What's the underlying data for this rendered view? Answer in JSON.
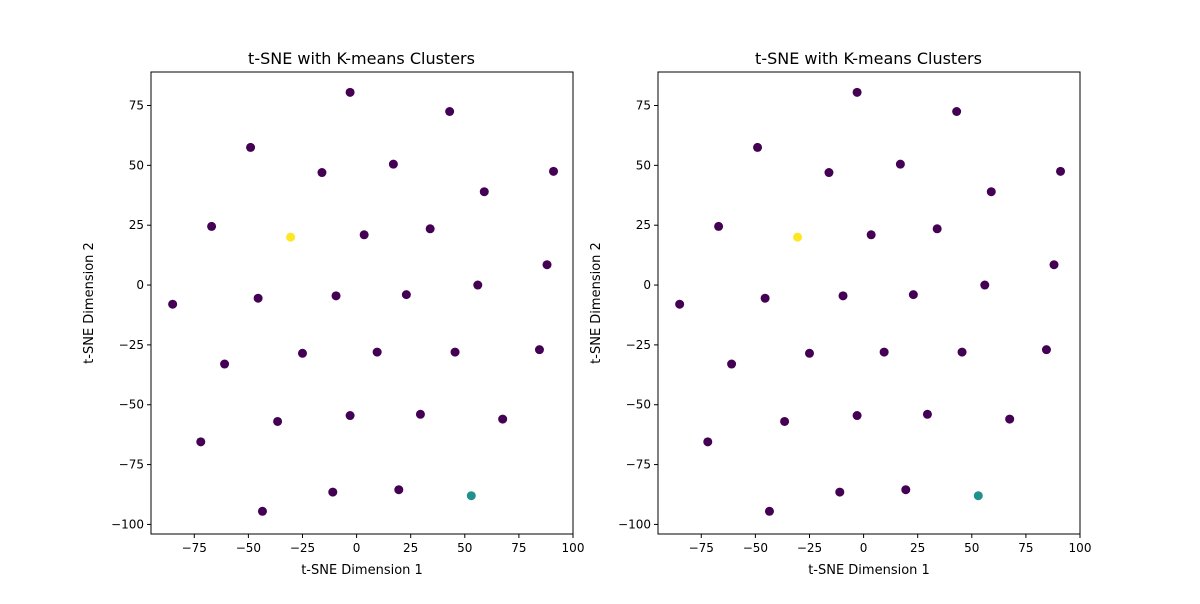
{
  "chart_data": [
    {
      "type": "scatter",
      "title": "t-SNE with K-means Clusters",
      "xlabel": "t-SNE Dimension 1",
      "ylabel": "t-SNE Dimension 2",
      "xlim": [
        -95,
        100
      ],
      "ylim": [
        -104,
        89
      ],
      "xticks": [
        -75,
        -50,
        -25,
        0,
        25,
        50,
        75,
        100
      ],
      "yticks": [
        75,
        50,
        25,
        0,
        -25,
        -50,
        -75,
        -100
      ],
      "grid": false,
      "legend": "none",
      "cluster_colors": [
        "#440154",
        "#21918c",
        "#fde725"
      ],
      "points": [
        {
          "x": -3,
          "y": 80.5,
          "cluster": 0
        },
        {
          "x": 43,
          "y": 72.5,
          "cluster": 0
        },
        {
          "x": -49,
          "y": 57.5,
          "cluster": 0
        },
        {
          "x": 17,
          "y": 50.5,
          "cluster": 0
        },
        {
          "x": -16,
          "y": 47,
          "cluster": 0
        },
        {
          "x": 91,
          "y": 47.5,
          "cluster": 0
        },
        {
          "x": 59,
          "y": 39,
          "cluster": 0
        },
        {
          "x": -67,
          "y": 24.5,
          "cluster": 0
        },
        {
          "x": 34,
          "y": 23.5,
          "cluster": 0
        },
        {
          "x": 3.5,
          "y": 21,
          "cluster": 0
        },
        {
          "x": -30.5,
          "y": 20,
          "cluster": 2
        },
        {
          "x": 88,
          "y": 8.5,
          "cluster": 0
        },
        {
          "x": 56,
          "y": 0,
          "cluster": 0
        },
        {
          "x": -85,
          "y": -8,
          "cluster": 0
        },
        {
          "x": -45.5,
          "y": -5.5,
          "cluster": 0
        },
        {
          "x": -9.5,
          "y": -4.5,
          "cluster": 0
        },
        {
          "x": 23,
          "y": -4,
          "cluster": 0
        },
        {
          "x": 84.5,
          "y": -27,
          "cluster": 0
        },
        {
          "x": -25,
          "y": -28.5,
          "cluster": 0
        },
        {
          "x": 9.5,
          "y": -28,
          "cluster": 0
        },
        {
          "x": 45.5,
          "y": -28,
          "cluster": 0
        },
        {
          "x": -61,
          "y": -33,
          "cluster": 0
        },
        {
          "x": 29.5,
          "y": -54,
          "cluster": 0
        },
        {
          "x": -3,
          "y": -54.5,
          "cluster": 0
        },
        {
          "x": 67.5,
          "y": -56,
          "cluster": 0
        },
        {
          "x": -36.5,
          "y": -57,
          "cluster": 0
        },
        {
          "x": -72,
          "y": -65.5,
          "cluster": 0
        },
        {
          "x": 19.5,
          "y": -85.5,
          "cluster": 0
        },
        {
          "x": -11,
          "y": -86.5,
          "cluster": 0
        },
        {
          "x": 53,
          "y": -88,
          "cluster": 1
        },
        {
          "x": -43.5,
          "y": -94.5,
          "cluster": 0
        }
      ]
    },
    {
      "type": "scatter",
      "title": "t-SNE with K-means Clusters",
      "xlabel": "t-SNE Dimension 1",
      "ylabel": "t-SNE Dimension 2",
      "xlim": [
        -95,
        100
      ],
      "ylim": [
        -104,
        89
      ],
      "xticks": [
        -75,
        -50,
        -25,
        0,
        25,
        50,
        75,
        100
      ],
      "yticks": [
        75,
        50,
        25,
        0,
        -25,
        -50,
        -75,
        -100
      ],
      "grid": false,
      "legend": "none",
      "cluster_colors": [
        "#440154",
        "#21918c",
        "#fde725"
      ],
      "points": [
        {
          "x": -3,
          "y": 80.5,
          "cluster": 0
        },
        {
          "x": 43,
          "y": 72.5,
          "cluster": 0
        },
        {
          "x": -49,
          "y": 57.5,
          "cluster": 0
        },
        {
          "x": 17,
          "y": 50.5,
          "cluster": 0
        },
        {
          "x": -16,
          "y": 47,
          "cluster": 0
        },
        {
          "x": 91,
          "y": 47.5,
          "cluster": 0
        },
        {
          "x": 59,
          "y": 39,
          "cluster": 0
        },
        {
          "x": -67,
          "y": 24.5,
          "cluster": 0
        },
        {
          "x": 34,
          "y": 23.5,
          "cluster": 0
        },
        {
          "x": 3.5,
          "y": 21,
          "cluster": 0
        },
        {
          "x": -30.5,
          "y": 20,
          "cluster": 2
        },
        {
          "x": 88,
          "y": 8.5,
          "cluster": 0
        },
        {
          "x": 56,
          "y": 0,
          "cluster": 0
        },
        {
          "x": -85,
          "y": -8,
          "cluster": 0
        },
        {
          "x": -45.5,
          "y": -5.5,
          "cluster": 0
        },
        {
          "x": -9.5,
          "y": -4.5,
          "cluster": 0
        },
        {
          "x": 23,
          "y": -4,
          "cluster": 0
        },
        {
          "x": 84.5,
          "y": -27,
          "cluster": 0
        },
        {
          "x": -25,
          "y": -28.5,
          "cluster": 0
        },
        {
          "x": 9.5,
          "y": -28,
          "cluster": 0
        },
        {
          "x": 45.5,
          "y": -28,
          "cluster": 0
        },
        {
          "x": -61,
          "y": -33,
          "cluster": 0
        },
        {
          "x": 29.5,
          "y": -54,
          "cluster": 0
        },
        {
          "x": -3,
          "y": -54.5,
          "cluster": 0
        },
        {
          "x": 67.5,
          "y": -56,
          "cluster": 0
        },
        {
          "x": -36.5,
          "y": -57,
          "cluster": 0
        },
        {
          "x": -72,
          "y": -65.5,
          "cluster": 0
        },
        {
          "x": 19.5,
          "y": -85.5,
          "cluster": 0
        },
        {
          "x": -11,
          "y": -86.5,
          "cluster": 0
        },
        {
          "x": 53,
          "y": -88,
          "cluster": 1
        },
        {
          "x": -43.5,
          "y": -94.5,
          "cluster": 0
        }
      ]
    }
  ]
}
